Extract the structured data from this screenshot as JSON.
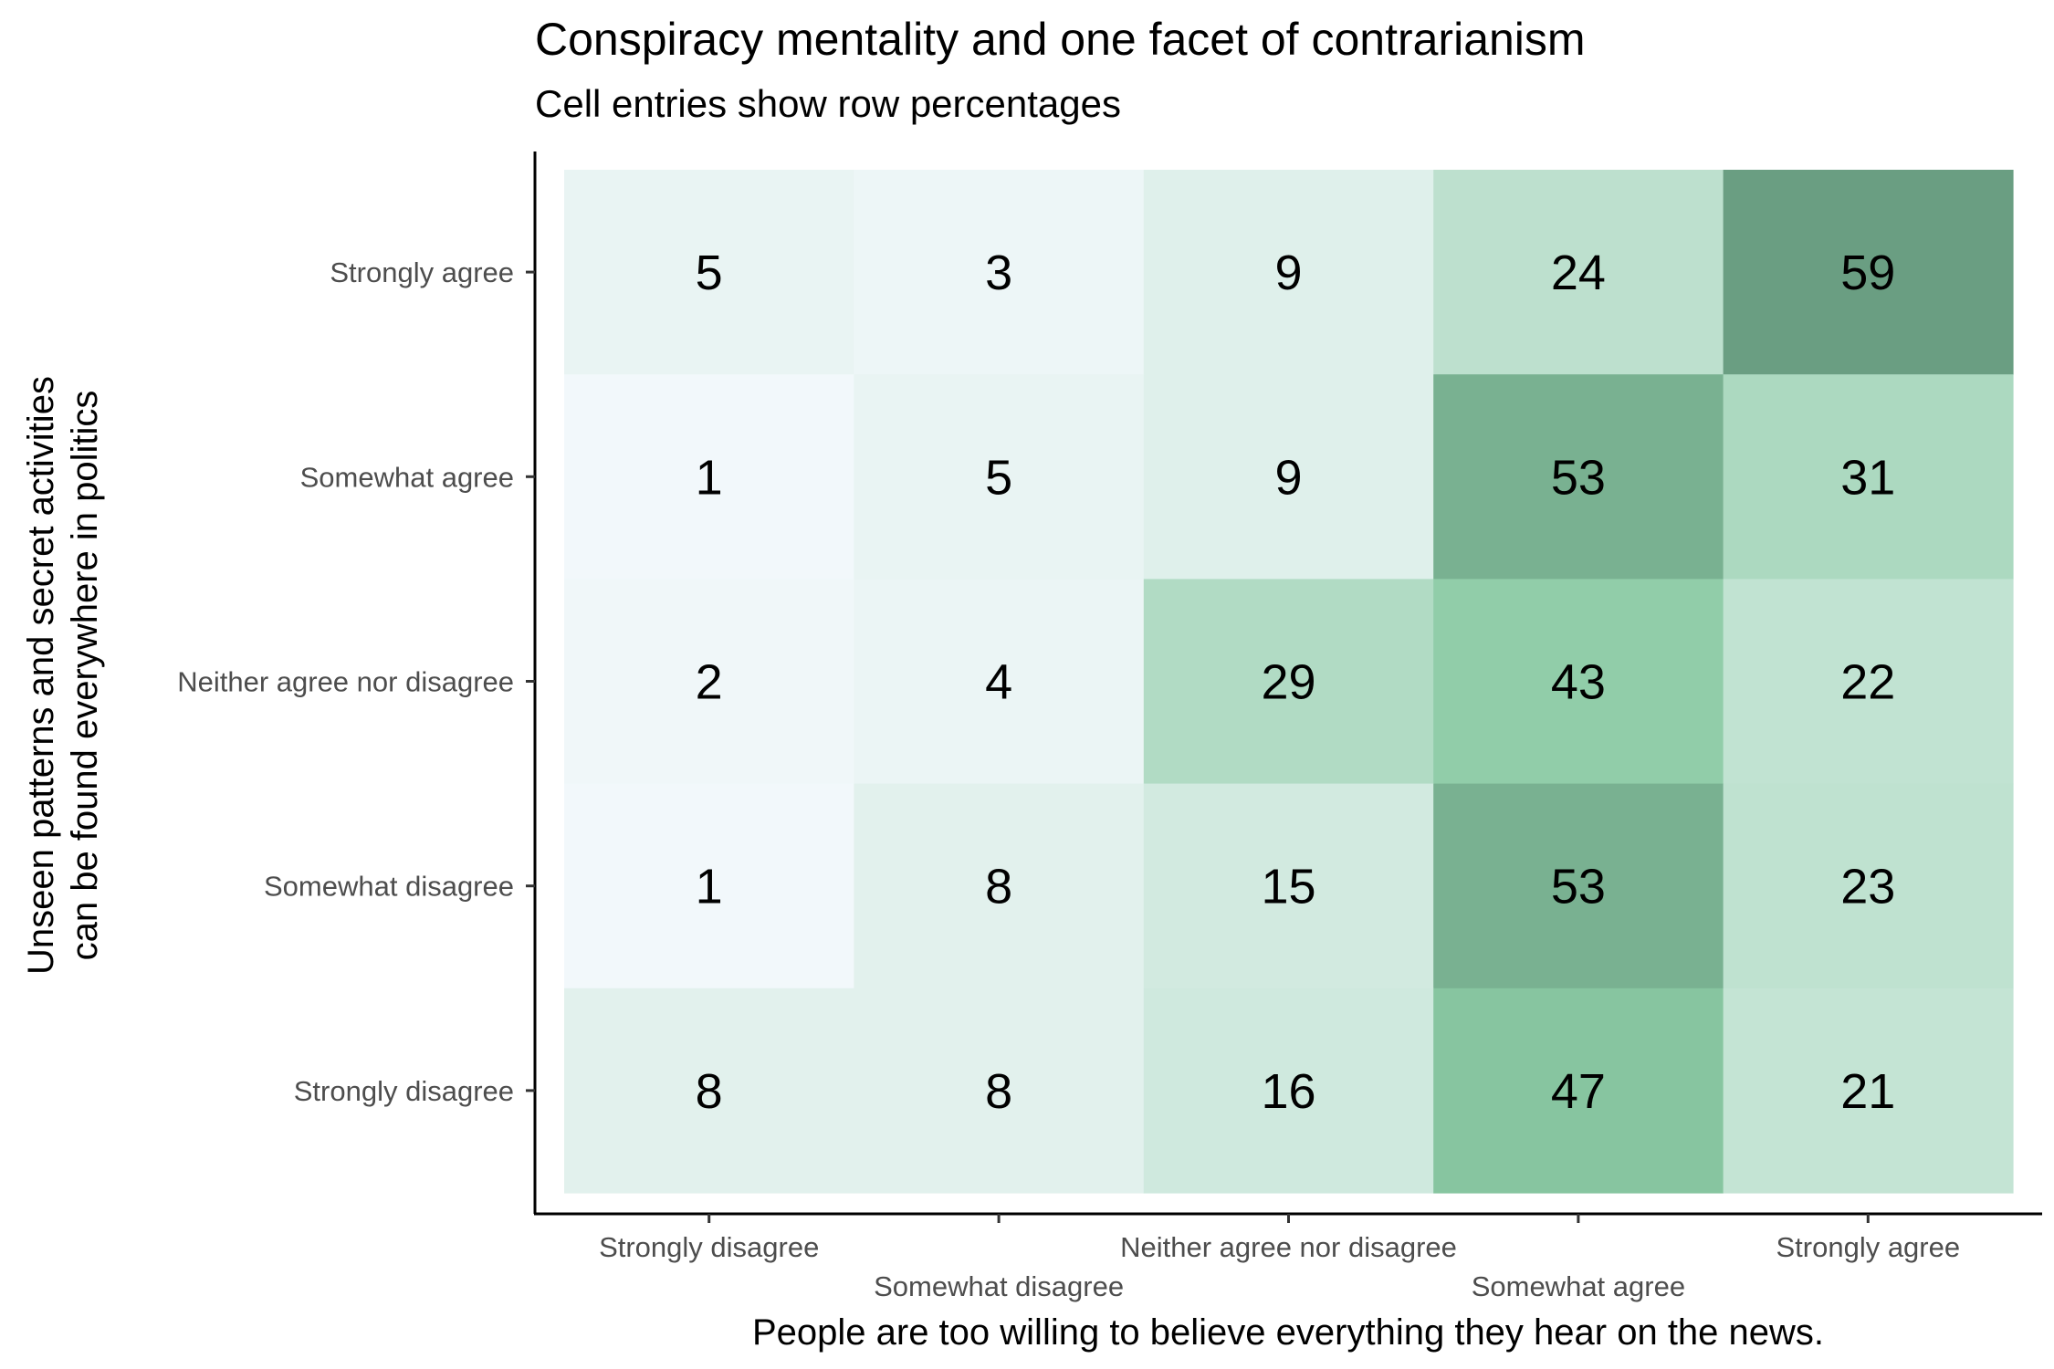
{
  "chart_data": {
    "type": "heatmap",
    "title": "Conspiracy mentality and one facet of contrarianism",
    "subtitle": "Cell entries show row percentages",
    "xlabel": "People are too willing to believe everything they hear on the news.",
    "ylabel_lines": [
      "Unseen patterns and secret activities",
      "can be found everywhere in politics"
    ],
    "x_categories": [
      "Strongly disagree",
      "Somewhat disagree",
      "Neither agree nor disagree",
      "Somewhat agree",
      "Strongly agree"
    ],
    "y_categories": [
      "Strongly agree",
      "Somewhat agree",
      "Neither agree nor disagree",
      "Somewhat disagree",
      "Strongly disagree"
    ],
    "values": [
      [
        5,
        3,
        9,
        24,
        59
      ],
      [
        1,
        5,
        9,
        53,
        31
      ],
      [
        2,
        4,
        29,
        43,
        22
      ],
      [
        1,
        8,
        15,
        53,
        23
      ],
      [
        8,
        8,
        16,
        47,
        21
      ]
    ],
    "color_scale": {
      "low": "#f2f8fb",
      "mid": "#8ccba5",
      "high": "#6a9e82",
      "low_value": 1,
      "mid_value": 45,
      "high_value": 59
    }
  }
}
